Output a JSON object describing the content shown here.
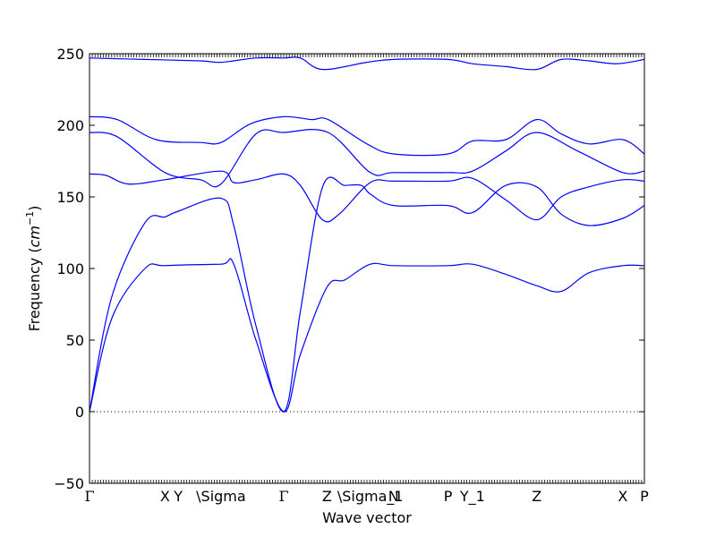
{
  "chart_data": {
    "type": "line",
    "xlabel": "Wave vector",
    "ylabel_prefix": "Frequency (",
    "ylabel_unit_base": "cm",
    "ylabel_unit_exp": "−1",
    "ylabel_suffix": ")",
    "ylim": [
      -50,
      250
    ],
    "yticks": [
      -50,
      0,
      50,
      100,
      150,
      200,
      250
    ],
    "ytick_labels": [
      "−50",
      "0",
      "50",
      "100",
      "150",
      "200",
      "250"
    ],
    "grid": false,
    "legend": "none",
    "zero_line": "dotted",
    "line_color": "#0000ff",
    "high_symmetry_points": [
      {
        "label": "Γ",
        "x": 0
      },
      {
        "label": "X",
        "x": 0.136
      },
      {
        "label": "Y",
        "x": 0.16
      },
      {
        "label": "\\Sigma",
        "x": 0.237
      },
      {
        "label": "Γ",
        "x": 0.35
      },
      {
        "label": "Z",
        "x": 0.428
      },
      {
        "label": "\\Sigma_1",
        "x": 0.506
      },
      {
        "label": "N",
        "x": 0.548
      },
      {
        "label": "P",
        "x": 0.646
      },
      {
        "label": "Y_1",
        "x": 0.69
      },
      {
        "label": "Z",
        "x": 0.806
      },
      {
        "label": "X",
        "x": 0.961
      },
      {
        "label": "P",
        "x": 1.0
      }
    ],
    "series": [
      {
        "values": [
          [
            0,
            247
          ],
          [
            0.1,
            246
          ],
          [
            0.2,
            245
          ],
          [
            0.237,
            244
          ],
          [
            0.3,
            247
          ],
          [
            0.35,
            247
          ],
          [
            0.38,
            247
          ],
          [
            0.42,
            239
          ],
          [
            0.5,
            244
          ],
          [
            0.548,
            246
          ],
          [
            0.646,
            246
          ],
          [
            0.69,
            243
          ],
          [
            0.75,
            241
          ],
          [
            0.806,
            239
          ],
          [
            0.85,
            246
          ],
          [
            0.9,
            245
          ],
          [
            0.95,
            243
          ],
          [
            1.0,
            246
          ]
        ]
      },
      {
        "values": [
          [
            0,
            206
          ],
          [
            0.05,
            204
          ],
          [
            0.12,
            190
          ],
          [
            0.2,
            188
          ],
          [
            0.237,
            188
          ],
          [
            0.29,
            201
          ],
          [
            0.35,
            206
          ],
          [
            0.4,
            204
          ],
          [
            0.43,
            204
          ],
          [
            0.5,
            187
          ],
          [
            0.548,
            180
          ],
          [
            0.646,
            180
          ],
          [
            0.69,
            189
          ],
          [
            0.75,
            190
          ],
          [
            0.806,
            204
          ],
          [
            0.85,
            194
          ],
          [
            0.9,
            187
          ],
          [
            0.961,
            190
          ],
          [
            1.0,
            180
          ]
        ]
      },
      {
        "values": [
          [
            0,
            195
          ],
          [
            0.05,
            192
          ],
          [
            0.136,
            167
          ],
          [
            0.2,
            162
          ],
          [
            0.237,
            159
          ],
          [
            0.3,
            194
          ],
          [
            0.35,
            195
          ],
          [
            0.43,
            195
          ],
          [
            0.506,
            167
          ],
          [
            0.548,
            167
          ],
          [
            0.646,
            167
          ],
          [
            0.69,
            168
          ],
          [
            0.75,
            182
          ],
          [
            0.806,
            195
          ],
          [
            0.88,
            182
          ],
          [
            0.961,
            167
          ],
          [
            1.0,
            168
          ]
        ]
      },
      {
        "values": [
          [
            0,
            166
          ],
          [
            0.03,
            165
          ],
          [
            0.07,
            159
          ],
          [
            0.136,
            162
          ],
          [
            0.237,
            168
          ],
          [
            0.26,
            160
          ],
          [
            0.3,
            162
          ],
          [
            0.35,
            166
          ],
          [
            0.38,
            158
          ],
          [
            0.42,
            134
          ],
          [
            0.45,
            138
          ],
          [
            0.506,
            160
          ],
          [
            0.548,
            161
          ],
          [
            0.646,
            161
          ],
          [
            0.69,
            163
          ],
          [
            0.75,
            148
          ],
          [
            0.806,
            134
          ],
          [
            0.85,
            150
          ],
          [
            0.9,
            157
          ],
          [
            0.961,
            162
          ],
          [
            1.0,
            161
          ]
        ]
      },
      {
        "values": [
          [
            0,
            0
          ],
          [
            0.04,
            80
          ],
          [
            0.1,
            132
          ],
          [
            0.136,
            136
          ],
          [
            0.16,
            140
          ],
          [
            0.237,
            149
          ],
          [
            0.26,
            130
          ],
          [
            0.3,
            60
          ],
          [
            0.35,
            0
          ],
          [
            0.38,
            70
          ],
          [
            0.42,
            157
          ],
          [
            0.46,
            158
          ],
          [
            0.49,
            158
          ],
          [
            0.506,
            152
          ],
          [
            0.548,
            144
          ],
          [
            0.646,
            144
          ],
          [
            0.69,
            139
          ],
          [
            0.75,
            158
          ],
          [
            0.806,
            157
          ],
          [
            0.85,
            138
          ],
          [
            0.9,
            130
          ],
          [
            0.961,
            135
          ],
          [
            1.0,
            144
          ]
        ]
      },
      {
        "values": [
          [
            0,
            0
          ],
          [
            0.04,
            65
          ],
          [
            0.1,
            100
          ],
          [
            0.136,
            102
          ],
          [
            0.237,
            103
          ],
          [
            0.26,
            103
          ],
          [
            0.3,
            50
          ],
          [
            0.35,
            0
          ],
          [
            0.38,
            40
          ],
          [
            0.428,
            87
          ],
          [
            0.46,
            92
          ],
          [
            0.506,
            103
          ],
          [
            0.548,
            102
          ],
          [
            0.646,
            102
          ],
          [
            0.69,
            103
          ],
          [
            0.75,
            96
          ],
          [
            0.806,
            88
          ],
          [
            0.85,
            84
          ],
          [
            0.9,
            97
          ],
          [
            0.961,
            102
          ],
          [
            1.0,
            102
          ]
        ]
      }
    ]
  }
}
